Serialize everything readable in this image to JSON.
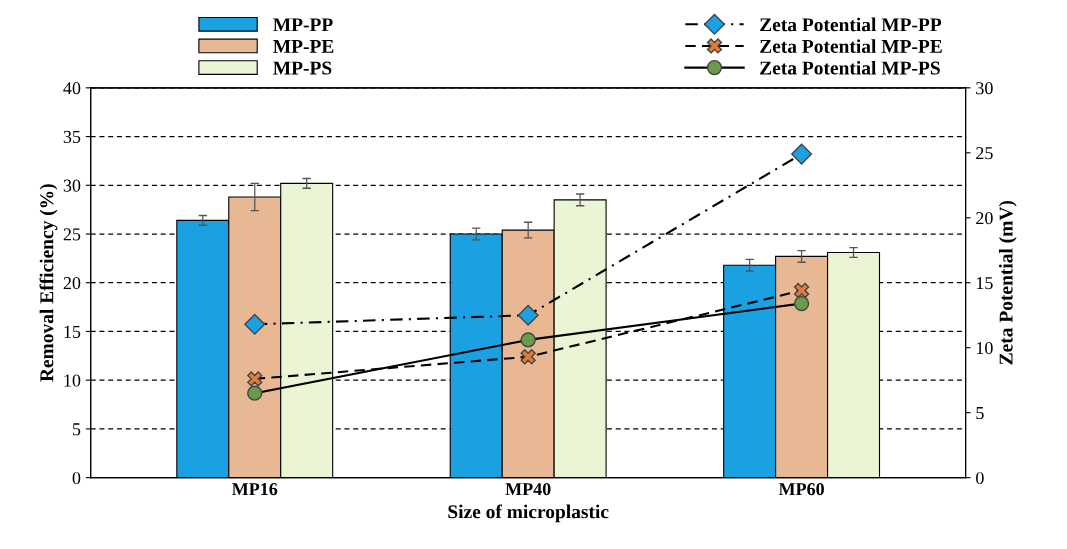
{
  "chart_data": {
    "type": "bar",
    "xlabel": "Size of microplastic",
    "ylabel": "Removal Efficiency (%)",
    "y2label": "Zeta Potential (mV)",
    "categories": [
      "MP16",
      "MP40",
      "MP60"
    ],
    "series": [
      {
        "name": "MP-PP",
        "color": "#1ba1e2",
        "values": [
          26.4,
          25.0,
          21.8
        ],
        "errors": [
          0.5,
          0.6,
          0.6
        ]
      },
      {
        "name": "MP-PE",
        "color": "#e8b895",
        "values": [
          28.8,
          25.4,
          22.7
        ],
        "errors": [
          1.4,
          0.8,
          0.6
        ]
      },
      {
        "name": "MP-PS",
        "color": "#eaf5d5",
        "values": [
          30.2,
          28.5,
          23.1
        ],
        "errors": [
          0.5,
          0.6,
          0.5
        ]
      },
      {
        "name": "Zeta Potential MP-PP",
        "type": "line",
        "axis": "y2",
        "color": "#1ba1e2",
        "marker": "diamond",
        "line_style": "dashdot",
        "values": [
          11.8,
          12.5,
          24.9
        ]
      },
      {
        "name": "Zeta Potential MP-PE",
        "type": "line",
        "axis": "y2",
        "color": "#e07b39",
        "marker": "cross",
        "line_style": "dashed",
        "values": [
          7.6,
          9.3,
          14.4
        ]
      },
      {
        "name": "Zeta Potential MP-PS",
        "type": "line",
        "axis": "y2",
        "color": "#6a9a4a",
        "marker": "circle",
        "line_style": "solid",
        "values": [
          6.5,
          10.6,
          13.4
        ]
      }
    ],
    "ylim": [
      0,
      40
    ],
    "yticks": [
      0,
      5,
      10,
      15,
      20,
      25,
      30,
      35,
      40
    ],
    "y2lim": [
      0,
      30
    ],
    "y2ticks": [
      0,
      5,
      10,
      15,
      20,
      25,
      30
    ],
    "grid": "y",
    "legend": "top"
  }
}
